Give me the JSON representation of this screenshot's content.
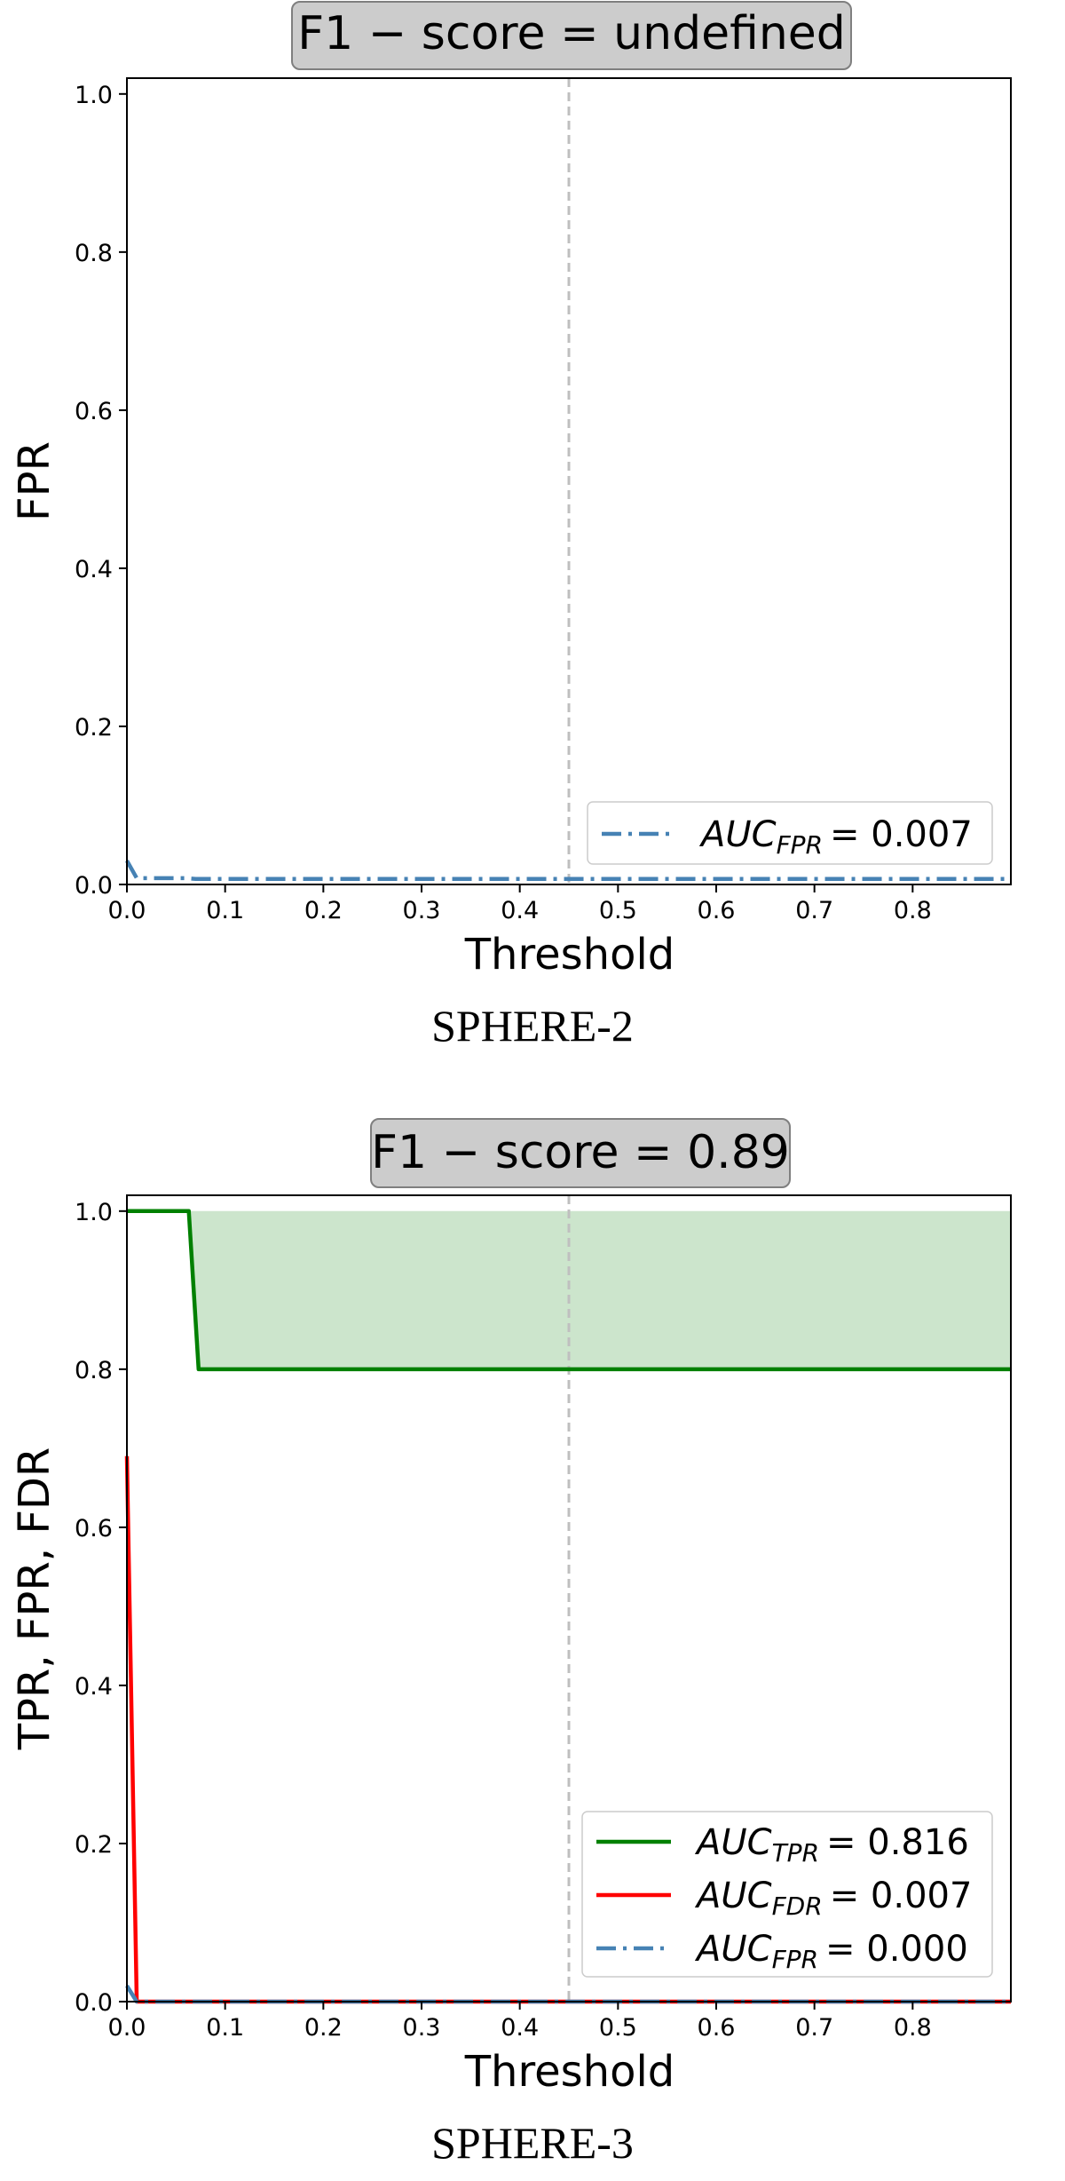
{
  "chart_data": [
    {
      "type": "line",
      "title": "F1 − score =  undefined",
      "xlabel": "Threshold",
      "ylabel": "FPR",
      "caption": "SPHERE-2",
      "xlim": [
        0.0,
        0.9
      ],
      "ylim": [
        0.0,
        1.02
      ],
      "xticks": [
        "0.0",
        "0.1",
        "0.2",
        "0.3",
        "0.4",
        "0.5",
        "0.6",
        "0.7",
        "0.8"
      ],
      "yticks": [
        "0.0",
        "0.2",
        "0.4",
        "0.6",
        "0.8",
        "1.0"
      ],
      "threshold_marker": 0.45,
      "grid": false,
      "legend_position": "lower-right",
      "series": [
        {
          "name": "FPR",
          "legend": {
            "auc_label": "AUC",
            "subscript": "FPR",
            "value": "= 0.007"
          },
          "color": "#4682b4",
          "style": "dashdot",
          "x": [
            0.0,
            0.01,
            0.06,
            0.07,
            0.9
          ],
          "y": [
            0.03,
            0.008,
            0.008,
            0.007,
            0.007
          ]
        }
      ]
    },
    {
      "type": "line",
      "title": "F1 − score = 0.89",
      "xlabel": "Threshold",
      "ylabel": "TPR, FPR, FDR",
      "caption": "SPHERE-3",
      "xlim": [
        0.0,
        0.9
      ],
      "ylim": [
        0.0,
        1.02
      ],
      "xticks": [
        "0.0",
        "0.1",
        "0.2",
        "0.3",
        "0.4",
        "0.5",
        "0.6",
        "0.7",
        "0.8"
      ],
      "yticks": [
        "0.0",
        "0.2",
        "0.4",
        "0.6",
        "0.8",
        "1.0"
      ],
      "threshold_marker": 0.45,
      "grid": false,
      "legend_position": "lower-right",
      "fill_between": {
        "series": "TPR",
        "upper": 1.0,
        "color": "#cce5cc"
      },
      "series": [
        {
          "name": "TPR",
          "legend": {
            "auc_label": "AUC",
            "subscript": "TPR",
            "value": "= 0.816"
          },
          "color": "#008000",
          "style": "solid",
          "x": [
            0.0,
            0.063,
            0.073,
            0.9
          ],
          "y": [
            1.0,
            1.0,
            0.8,
            0.8
          ]
        },
        {
          "name": "FDR",
          "legend": {
            "auc_label": "AUC",
            "subscript": "FDR",
            "value": "= 0.007"
          },
          "color": "#ff0000",
          "style": "solid",
          "x": [
            0.0,
            0.01,
            0.02,
            0.9
          ],
          "y": [
            0.69,
            0.0,
            0.0,
            0.0
          ]
        },
        {
          "name": "FPR",
          "legend": {
            "auc_label": "AUC",
            "subscript": "FPR",
            "value": "= 0.000"
          },
          "color": "#4682b4",
          "style": "dashdot",
          "x": [
            0.0,
            0.01,
            0.9
          ],
          "y": [
            0.02,
            0.0,
            0.0
          ]
        }
      ]
    }
  ]
}
